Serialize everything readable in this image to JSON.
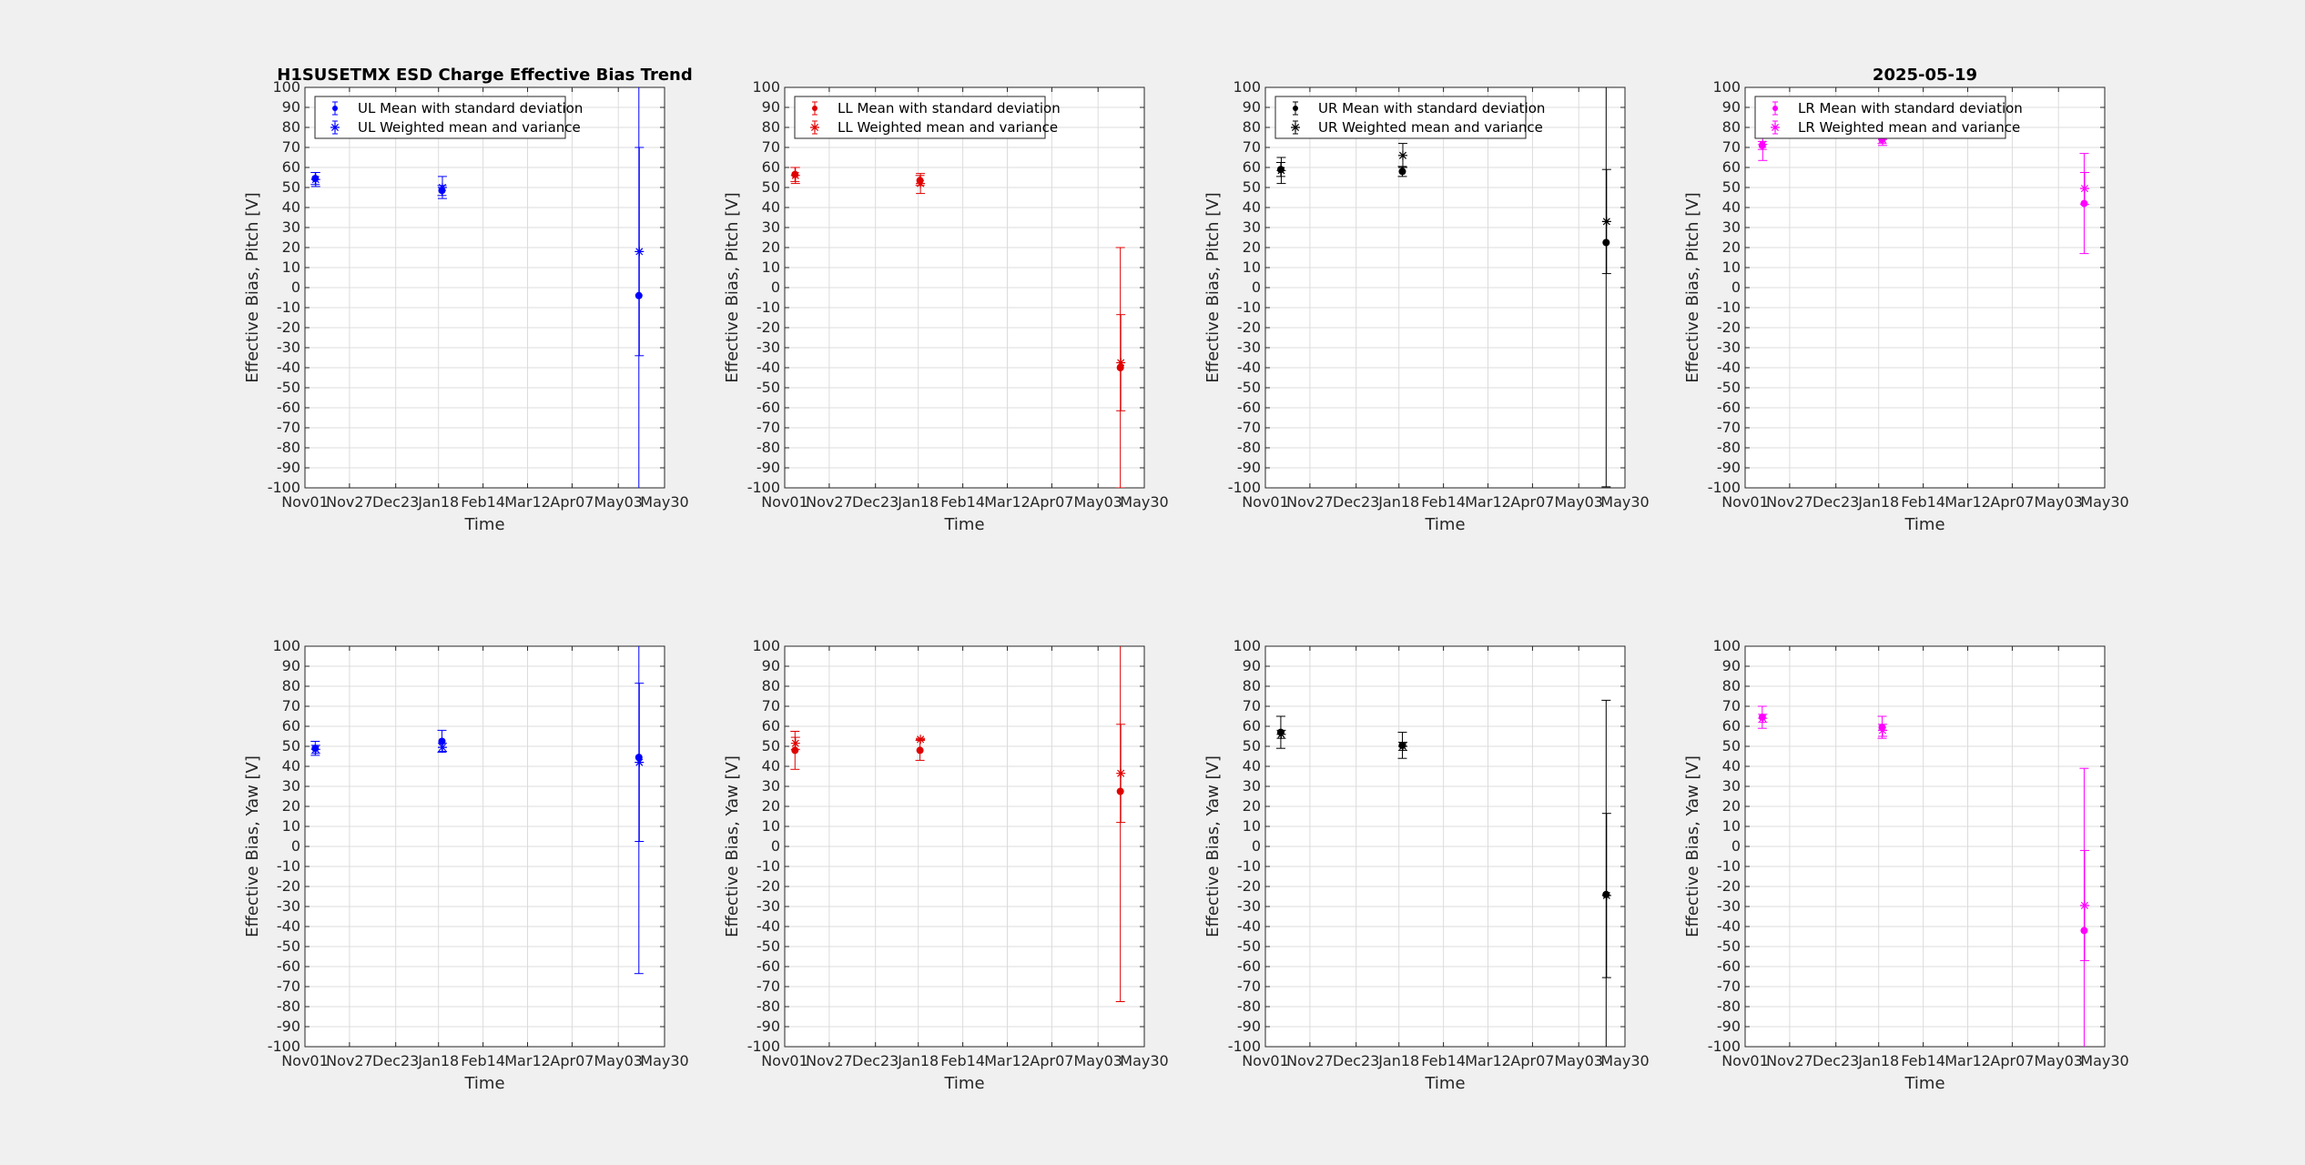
{
  "figure": {
    "title": "H1SUSETMX ESD Charge Effective Bias Trend",
    "date": "2025-05-19",
    "background": "#f0f0f0"
  },
  "chart_data": [
    {
      "type": "scatter",
      "quadrant": "UL",
      "color": "#0000ff",
      "title_key": "title",
      "xlabel": "Time",
      "ylabel": "Effective Bias, Pitch [V]",
      "xlim": [
        0,
        210
      ],
      "ylim": [
        -100,
        100
      ],
      "xticks": [
        0,
        26,
        53,
        78,
        104,
        130,
        156,
        183,
        210
      ],
      "xticklabels": [
        "Nov01",
        "Nov27",
        "Dec23",
        "Jan18",
        "Feb14",
        "Mar12",
        "Apr07",
        "May03",
        "May30"
      ],
      "ytick_step": 10,
      "grid": true,
      "legend": "top-left",
      "series": [
        {
          "name": "UL Mean with standard deviation",
          "marker": "dot",
          "x": [
            6,
            80,
            195
          ],
          "y": [
            54.5,
            48.5,
            -4
          ],
          "err": [
            3,
            2.5,
            130
          ]
        },
        {
          "name": "UL Weighted mean and variance",
          "marker": "star",
          "x": [
            6,
            80,
            195
          ],
          "y": [
            54,
            50,
            18
          ],
          "err": [
            3.5,
            5.5,
            52
          ]
        }
      ]
    },
    {
      "type": "scatter",
      "quadrant": "LL",
      "color": "#e00000",
      "xlabel": "Time",
      "ylabel": "Effective Bias, Pitch [V]",
      "xlim": [
        0,
        210
      ],
      "ylim": [
        -100,
        100
      ],
      "xticks": [
        0,
        26,
        53,
        78,
        104,
        130,
        156,
        183,
        210
      ],
      "xticklabels": [
        "Nov01",
        "Nov27",
        "Dec23",
        "Jan18",
        "Feb14",
        "Mar12",
        "Apr07",
        "May03",
        "May30"
      ],
      "ytick_step": 10,
      "grid": true,
      "legend": "top-left",
      "series": [
        {
          "name": "LL Mean with standard deviation",
          "marker": "dot",
          "x": [
            6,
            79,
            196
          ],
          "y": [
            56.5,
            53.5,
            -40
          ],
          "err": [
            3.5,
            2.5,
            60
          ]
        },
        {
          "name": "LL Weighted mean and variance",
          "marker": "star",
          "x": [
            6,
            79,
            196
          ],
          "y": [
            56,
            52,
            -37.5
          ],
          "err": [
            4,
            5,
            24
          ]
        }
      ]
    },
    {
      "type": "scatter",
      "quadrant": "UR",
      "color": "#000000",
      "xlabel": "Time",
      "ylabel": "Effective Bias, Pitch [V]",
      "xlim": [
        0,
        210
      ],
      "ylim": [
        -100,
        100
      ],
      "xticks": [
        0,
        26,
        53,
        78,
        104,
        130,
        156,
        183,
        210
      ],
      "xticklabels": [
        "Nov01",
        "Nov27",
        "Dec23",
        "Jan18",
        "Feb14",
        "Mar12",
        "Apr07",
        "May03",
        "May30"
      ],
      "ytick_step": 10,
      "grid": true,
      "legend": "top-left",
      "series": [
        {
          "name": "UR Mean with standard deviation",
          "marker": "dot",
          "x": [
            9,
            80,
            199
          ],
          "y": [
            59,
            58,
            22.5
          ],
          "err": [
            3.5,
            2.5,
            122
          ]
        },
        {
          "name": "UR Weighted mean and variance",
          "marker": "star",
          "x": [
            9,
            80,
            199
          ],
          "y": [
            58.5,
            66,
            33
          ],
          "err": [
            6.5,
            6,
            26
          ]
        }
      ]
    },
    {
      "type": "scatter",
      "quadrant": "LR",
      "color": "#ff00ff",
      "title_key": "date",
      "xlabel": "Time",
      "ylabel": "Effective Bias, Pitch [V]",
      "xlim": [
        0,
        210
      ],
      "ylim": [
        -100,
        100
      ],
      "xticks": [
        0,
        26,
        53,
        78,
        104,
        130,
        156,
        183,
        210
      ],
      "xticklabels": [
        "Nov01",
        "Nov27",
        "Dec23",
        "Jan18",
        "Feb14",
        "Mar12",
        "Apr07",
        "May03",
        "May30"
      ],
      "ytick_step": 10,
      "grid": true,
      "legend": "top-left",
      "series": [
        {
          "name": "LR Mean with standard deviation",
          "marker": "dot",
          "x": [
            10,
            80,
            198
          ],
          "y": [
            71,
            74,
            42
          ],
          "err": [
            2,
            2,
            25
          ]
        },
        {
          "name": "LR Weighted mean and variance",
          "marker": "star",
          "x": [
            10,
            80,
            198
          ],
          "y": [
            71.5,
            74,
            49.5
          ],
          "err": [
            8,
            3,
            8
          ]
        }
      ]
    },
    {
      "type": "scatter",
      "quadrant": "UL",
      "color": "#0000ff",
      "xlabel": "Time",
      "ylabel": "Effective Bias, Yaw [V]",
      "xlim": [
        0,
        210
      ],
      "ylim": [
        -100,
        100
      ],
      "xticks": [
        0,
        26,
        53,
        78,
        104,
        130,
        156,
        183,
        210
      ],
      "xticklabels": [
        "Nov01",
        "Nov27",
        "Dec23",
        "Jan18",
        "Feb14",
        "Mar12",
        "Apr07",
        "May03",
        "May30"
      ],
      "ytick_step": 10,
      "grid": true,
      "series": [
        {
          "name": "UL Mean with standard deviation",
          "marker": "dot",
          "x": [
            6,
            80,
            195
          ],
          "y": [
            49,
            52.5,
            44.5
          ],
          "err": [
            3.5,
            5.5,
            108
          ]
        },
        {
          "name": "UL Weighted mean and variance",
          "marker": "star",
          "x": [
            6,
            80,
            195
          ],
          "y": [
            48.5,
            49.5,
            42
          ],
          "err": [
            2,
            2,
            39.5
          ]
        }
      ]
    },
    {
      "type": "scatter",
      "quadrant": "LL",
      "color": "#e00000",
      "xlabel": "Time",
      "ylabel": "Effective Bias, Yaw [V]",
      "xlim": [
        0,
        210
      ],
      "ylim": [
        -100,
        100
      ],
      "xticks": [
        0,
        26,
        53,
        78,
        104,
        130,
        156,
        183,
        210
      ],
      "xticklabels": [
        "Nov01",
        "Nov27",
        "Dec23",
        "Jan18",
        "Feb14",
        "Mar12",
        "Apr07",
        "May03",
        "May30"
      ],
      "ytick_step": 10,
      "grid": true,
      "series": [
        {
          "name": "LL Mean with standard deviation",
          "marker": "dot",
          "x": [
            6,
            79,
            196
          ],
          "y": [
            48,
            48,
            27.5
          ],
          "err": [
            9.5,
            5,
            105
          ]
        },
        {
          "name": "LL Weighted mean and variance",
          "marker": "star",
          "x": [
            6,
            79,
            196
          ],
          "y": [
            51.5,
            53.5,
            36.5
          ],
          "err": [
            3,
            0.5,
            24.5
          ]
        }
      ]
    },
    {
      "type": "scatter",
      "quadrant": "UR",
      "color": "#000000",
      "xlabel": "Time",
      "ylabel": "Effective Bias, Yaw [V]",
      "xlim": [
        0,
        210
      ],
      "ylim": [
        -100,
        100
      ],
      "xticks": [
        0,
        26,
        53,
        78,
        104,
        130,
        156,
        183,
        210
      ],
      "xticklabels": [
        "Nov01",
        "Nov27",
        "Dec23",
        "Jan18",
        "Feb14",
        "Mar12",
        "Apr07",
        "May03",
        "May30"
      ],
      "ytick_step": 10,
      "grid": true,
      "series": [
        {
          "name": "UR Mean with standard deviation",
          "marker": "dot",
          "x": [
            9,
            80,
            199
          ],
          "y": [
            57,
            50.5,
            -24
          ],
          "err": [
            8,
            6.5,
            97
          ]
        },
        {
          "name": "UR Weighted mean and variance",
          "marker": "star",
          "x": [
            9,
            80,
            199
          ],
          "y": [
            56,
            50,
            -24.5
          ],
          "err": [
            2,
            2,
            41
          ]
        }
      ]
    },
    {
      "type": "scatter",
      "quadrant": "LR",
      "color": "#ff00ff",
      "xlabel": "Time",
      "ylabel": "Effective Bias, Yaw [V]",
      "xlim": [
        0,
        210
      ],
      "ylim": [
        -100,
        100
      ],
      "xticks": [
        0,
        26,
        53,
        78,
        104,
        130,
        156,
        183,
        210
      ],
      "xticklabels": [
        "Nov01",
        "Nov27",
        "Dec23",
        "Jan18",
        "Feb14",
        "Mar12",
        "Apr07",
        "May03",
        "May30"
      ],
      "ytick_step": 10,
      "grid": true,
      "series": [
        {
          "name": "LR Mean with standard deviation",
          "marker": "dot",
          "x": [
            10,
            80,
            198
          ],
          "y": [
            64.5,
            59.5,
            -42
          ],
          "err": [
            5.5,
            5.5,
            81
          ]
        },
        {
          "name": "LR Weighted mean and variance",
          "marker": "star",
          "x": [
            10,
            80,
            198
          ],
          "y": [
            64,
            58,
            -29.5
          ],
          "err": [
            2,
            3,
            27.5
          ]
        }
      ]
    }
  ]
}
